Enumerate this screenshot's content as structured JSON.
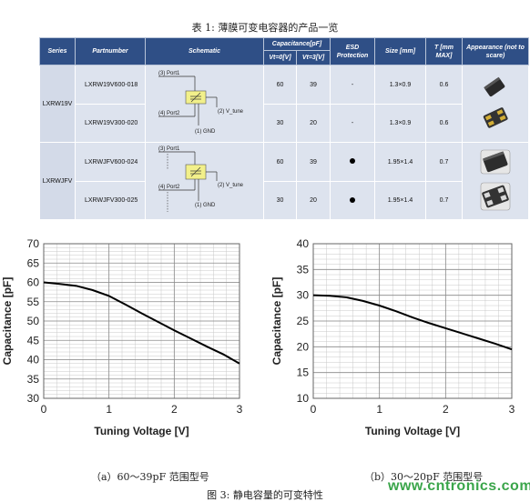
{
  "table_caption": "表 1: 薄膜可变电容器的产品一览",
  "table": {
    "headers": {
      "series": "Series",
      "partnumber": "Partnumber",
      "schematic": "Schematic",
      "capacitance": "Capacitance[pF]",
      "vt0": "Vt=0[V]",
      "vt3": "Vt=3[V]",
      "esd": "ESD Protection",
      "size": "Size [mm]",
      "t": "T [mm MAX]",
      "appearance": "Appearance (not to scare)"
    },
    "groups": [
      {
        "series": "LXRW19V",
        "schematic_labels": {
          "port1": "(3) Port1",
          "port2": "(4) Port2",
          "vtune": "(2) V_tune",
          "gnd": "(1) GND"
        },
        "rows": [
          {
            "part": "LXRW19V600-018",
            "vt0": "60",
            "vt3": "39",
            "esd": "-",
            "size": "1.3×0.9",
            "t": "0.6"
          },
          {
            "part": "LXRW19V300-020",
            "vt0": "30",
            "vt3": "20",
            "esd": "-",
            "size": "1.3×0.9",
            "t": "0.6"
          }
        ]
      },
      {
        "series": "LXRWJFV",
        "schematic_labels": {
          "port1": "(3) Port1",
          "port2": "(4) Port2",
          "vtune": "(2) V_tune",
          "gnd": "(1) GND"
        },
        "rows": [
          {
            "part": "LXRWJFV600-024",
            "vt0": "60",
            "vt3": "39",
            "esd": "dot",
            "size": "1.95×1.4",
            "t": "0.7"
          },
          {
            "part": "LXRWJFV300-025",
            "vt0": "30",
            "vt3": "20",
            "esd": "dot",
            "size": "1.95×1.4",
            "t": "0.7"
          }
        ]
      }
    ]
  },
  "chart_data": [
    {
      "type": "line",
      "xlabel": "Tuning Voltage [V]",
      "ylabel": "Capacitance [pF]",
      "xlim": [
        0,
        3
      ],
      "ylim": [
        30,
        70
      ],
      "xticks": [
        0,
        1,
        2,
        3
      ],
      "yticks": [
        30,
        35,
        40,
        45,
        50,
        55,
        60,
        65,
        70
      ],
      "grid": true,
      "series": [
        {
          "x": [
            0,
            0.25,
            0.5,
            0.75,
            1.0,
            1.25,
            1.5,
            1.75,
            2.0,
            2.25,
            2.5,
            2.75,
            3.0
          ],
          "values": [
            60,
            59.6,
            59.1,
            58.0,
            56.5,
            54.3,
            52.0,
            49.8,
            47.6,
            45.5,
            43.4,
            41.4,
            39
          ]
        }
      ],
      "color": "#000000"
    },
    {
      "type": "line",
      "xlabel": "Tuning Voltage [V]",
      "ylabel": "Capacitance [pF]",
      "xlim": [
        0,
        3
      ],
      "ylim": [
        10,
        40
      ],
      "xticks": [
        0,
        1,
        2,
        3
      ],
      "yticks": [
        10,
        15,
        20,
        25,
        30,
        35,
        40
      ],
      "grid": true,
      "series": [
        {
          "x": [
            0,
            0.25,
            0.5,
            0.75,
            1.0,
            1.25,
            1.5,
            1.75,
            2.0,
            2.25,
            2.5,
            2.75,
            3.0
          ],
          "values": [
            30,
            29.9,
            29.6,
            28.9,
            28.0,
            26.9,
            25.7,
            24.6,
            23.6,
            22.6,
            21.6,
            20.6,
            19.5
          ]
        }
      ],
      "color": "#000000"
    }
  ],
  "captions": {
    "a": "（a）60～39pF 范围型号",
    "b": "（b）30～20pF 范围型号",
    "figure": "图 3: 静电容量的可变特性"
  },
  "watermark": "www.cntronics.com"
}
